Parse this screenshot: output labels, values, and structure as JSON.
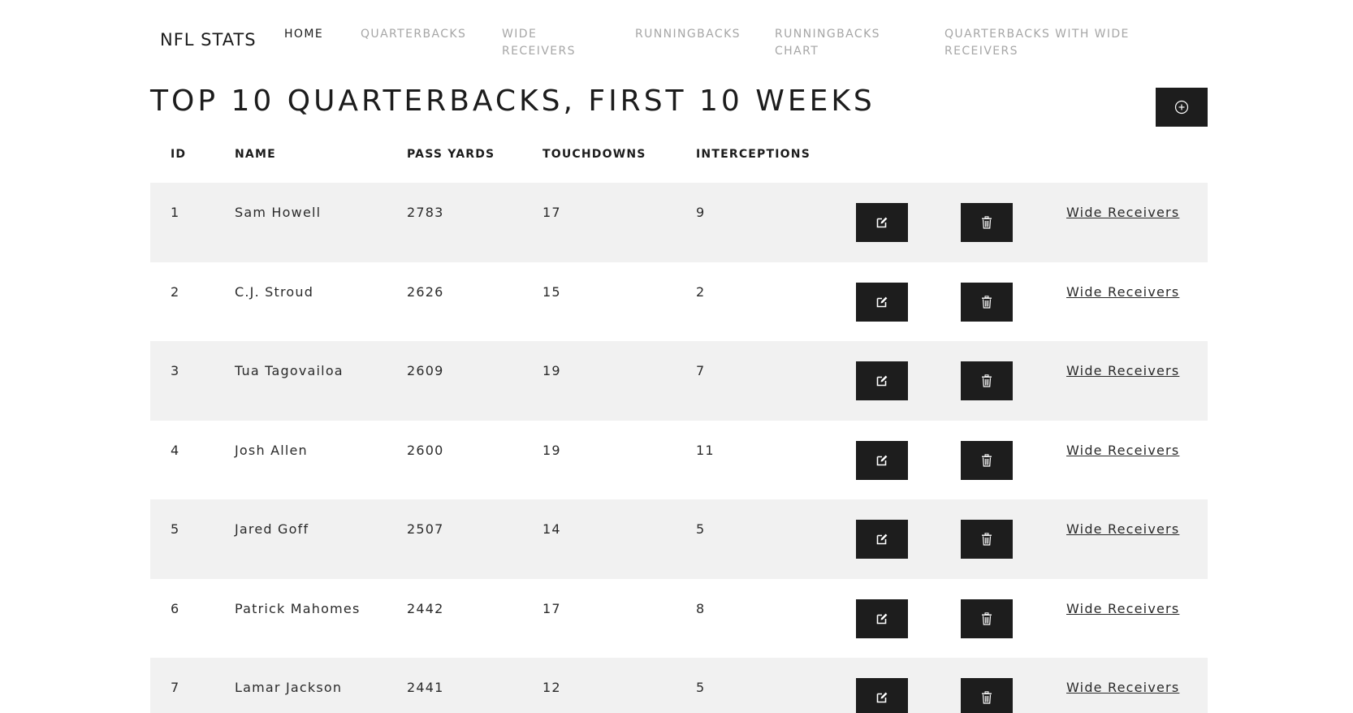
{
  "nav": {
    "brand": "NFL STATS",
    "items": [
      {
        "label": "HOME",
        "active": true
      },
      {
        "label": "QUARTERBACKS",
        "active": false
      },
      {
        "label": "WIDE RECEIVERS",
        "active": false
      },
      {
        "label": "RUNNINGBACKS",
        "active": false
      },
      {
        "label": "RUNNINGBACKS CHART",
        "active": false
      },
      {
        "label": "QUARTERBACKS WITH WIDE RECEIVERS",
        "active": false
      }
    ]
  },
  "page": {
    "title": "TOP 10 QUARTERBACKS, FIRST 10 WEEKS",
    "add_icon": "plus-circle-icon"
  },
  "table": {
    "headers": [
      "ID",
      "NAME",
      "PASS YARDS",
      "TOUCHDOWNS",
      "INTERCEPTIONS"
    ],
    "edit_icon": "edit-icon",
    "delete_icon": "trash-icon",
    "link_label": "Wide Receivers",
    "rows": [
      {
        "id": "1",
        "name": "Sam Howell",
        "pass_yards": "2783",
        "touchdowns": "17",
        "interceptions": "9"
      },
      {
        "id": "2",
        "name": "C.J. Stroud",
        "pass_yards": "2626",
        "touchdowns": "15",
        "interceptions": "2"
      },
      {
        "id": "3",
        "name": "Tua Tagovailoa",
        "pass_yards": "2609",
        "touchdowns": "19",
        "interceptions": "7"
      },
      {
        "id": "4",
        "name": "Josh Allen",
        "pass_yards": "2600",
        "touchdowns": "19",
        "interceptions": "11"
      },
      {
        "id": "5",
        "name": "Jared Goff",
        "pass_yards": "2507",
        "touchdowns": "14",
        "interceptions": "5"
      },
      {
        "id": "6",
        "name": "Patrick Mahomes",
        "pass_yards": "2442",
        "touchdowns": "17",
        "interceptions": "8"
      },
      {
        "id": "7",
        "name": "Lamar Jackson",
        "pass_yards": "2441",
        "touchdowns": "12",
        "interceptions": "5"
      }
    ]
  },
  "colors": {
    "button_bg": "#1d1d1d",
    "row_shade": "#f1f1f1",
    "nav_inactive": "#a6a6a6",
    "text": "#1c1c1c"
  }
}
